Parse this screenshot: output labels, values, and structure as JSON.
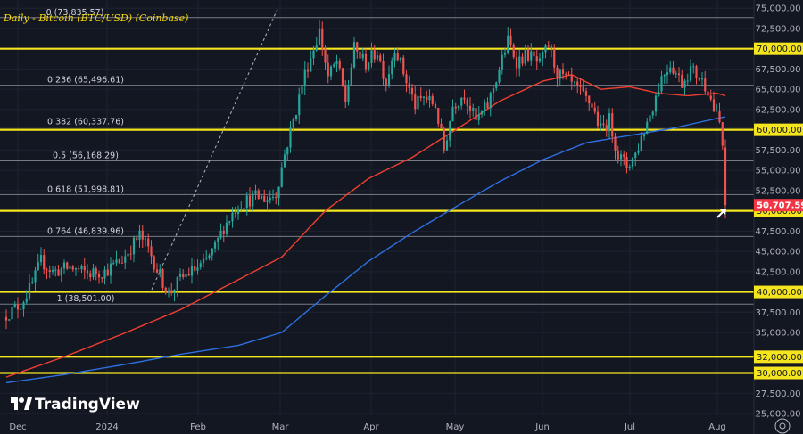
{
  "chart_data": {
    "type": "candlestick",
    "title": "Daily - Bitcoin (BTC/USD) (Coinbase)",
    "branding": "TradingView",
    "x_ticks": [
      "Dec",
      "2024",
      "Feb",
      "Mar",
      "Apr",
      "May",
      "Jun",
      "Jul",
      "Aug"
    ],
    "y_ticks": [
      "75,000.00",
      "72,500.00",
      "67,500.00",
      "65,000.00",
      "62,500.00",
      "57,500.00",
      "55,000.00",
      "52,500.00",
      "47,500.00",
      "45,000.00",
      "42,500.00",
      "37,500.00",
      "35,000.00",
      "27,500.00",
      "25,000.00"
    ],
    "ylim": [
      24500,
      75800
    ],
    "current_price": {
      "label": "50,707.59",
      "value": 50707.59
    },
    "horizontal_levels": [
      {
        "label": "70,000.00",
        "value": 70000
      },
      {
        "label": "60,000.00",
        "value": 60000
      },
      {
        "label": "50,000.00",
        "value": 50000
      },
      {
        "label": "40,000.00",
        "value": 40000
      },
      {
        "label": "32,000.00",
        "value": 32000
      },
      {
        "label": "30,000.00",
        "value": 30000
      }
    ],
    "fibonacci": [
      {
        "label": "0 (73,835.57)",
        "value": 73835.57
      },
      {
        "label": "0.236 (65,496.61)",
        "value": 65496.61
      },
      {
        "label": "0.382 (60,337.76)",
        "value": 60337.76
      },
      {
        "label": "0.5 (56,168.29)",
        "value": 56168.29
      },
      {
        "label": "0.618 (51,998.81)",
        "value": 51998.81
      },
      {
        "label": "0.764 (46,839.96)",
        "value": 46839.96
      },
      {
        "label": "1 (38,501.00)",
        "value": 38501.0
      }
    ],
    "close_anchors": [
      [
        0,
        37200
      ],
      [
        5,
        38500
      ],
      [
        9,
        41000
      ],
      [
        12,
        43800
      ],
      [
        16,
        42500
      ],
      [
        22,
        43000
      ],
      [
        28,
        42300
      ],
      [
        34,
        42500
      ],
      [
        40,
        44000
      ],
      [
        46,
        47000
      ],
      [
        49,
        45300
      ],
      [
        53,
        42000
      ],
      [
        56,
        39800
      ],
      [
        60,
        41500
      ],
      [
        64,
        42600
      ],
      [
        68,
        43300
      ],
      [
        72,
        45500
      ],
      [
        75,
        48000
      ],
      [
        80,
        50800
      ],
      [
        86,
        51700
      ],
      [
        90,
        51500
      ],
      [
        93,
        52100
      ],
      [
        96,
        57000
      ],
      [
        100,
        62500
      ],
      [
        103,
        67000
      ],
      [
        105,
        69000
      ],
      [
        108,
        72200
      ],
      [
        111,
        66500
      ],
      [
        114,
        68400
      ],
      [
        117,
        63500
      ],
      [
        120,
        70000
      ],
      [
        124,
        68200
      ],
      [
        128,
        69700
      ],
      [
        131,
        65800
      ],
      [
        134,
        70300
      ],
      [
        138,
        66000
      ],
      [
        141,
        63000
      ],
      [
        144,
        64000
      ],
      [
        148,
        63000
      ],
      [
        151,
        57500
      ],
      [
        154,
        63000
      ],
      [
        158,
        64500
      ],
      [
        162,
        61000
      ],
      [
        166,
        63000
      ],
      [
        170,
        67500
      ],
      [
        173,
        71000
      ],
      [
        176,
        68500
      ],
      [
        180,
        69300
      ],
      [
        184,
        68000
      ],
      [
        187,
        70500
      ],
      [
        190,
        67000
      ],
      [
        194,
        65900
      ],
      [
        198,
        64500
      ],
      [
        202,
        63000
      ],
      [
        205,
        60000
      ],
      [
        208,
        61200
      ],
      [
        211,
        56900
      ],
      [
        214,
        55500
      ],
      [
        217,
        57000
      ],
      [
        220,
        60000
      ],
      [
        223,
        63000
      ],
      [
        226,
        66500
      ],
      [
        229,
        68200
      ],
      [
        233,
        65800
      ],
      [
        236,
        67500
      ],
      [
        239,
        66500
      ],
      [
        242,
        65000
      ],
      [
        244,
        62500
      ],
      [
        246,
        60800
      ],
      [
        247,
        58000
      ],
      [
        248,
        50707.59
      ]
    ],
    "sma_fast_anchors": [
      [
        0,
        29500
      ],
      [
        20,
        32000
      ],
      [
        40,
        34800
      ],
      [
        60,
        37800
      ],
      [
        80,
        41500
      ],
      [
        95,
        44300
      ],
      [
        110,
        50000
      ],
      [
        125,
        54000
      ],
      [
        140,
        56600
      ],
      [
        155,
        60000
      ],
      [
        170,
        63500
      ],
      [
        185,
        66000
      ],
      [
        195,
        66800
      ],
      [
        205,
        65000
      ],
      [
        215,
        65300
      ],
      [
        225,
        64500
      ],
      [
        235,
        64200
      ],
      [
        245,
        64500
      ],
      [
        248,
        64200
      ]
    ],
    "sma_slow_anchors": [
      [
        0,
        28800
      ],
      [
        20,
        29800
      ],
      [
        40,
        31000
      ],
      [
        60,
        32300
      ],
      [
        80,
        33400
      ],
      [
        95,
        35000
      ],
      [
        110,
        39500
      ],
      [
        125,
        43800
      ],
      [
        140,
        47300
      ],
      [
        155,
        50500
      ],
      [
        170,
        53600
      ],
      [
        185,
        56300
      ],
      [
        200,
        58400
      ],
      [
        215,
        59300
      ],
      [
        230,
        60200
      ],
      [
        245,
        61400
      ],
      [
        248,
        61600
      ]
    ]
  }
}
